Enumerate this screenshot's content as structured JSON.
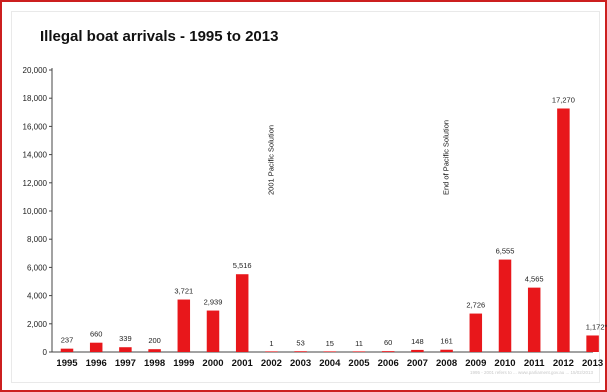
{
  "chart_data": {
    "type": "bar",
    "title": "Illegal boat arrivals - 1995 to 2013",
    "categories": [
      "1995",
      "1996",
      "1997",
      "1998",
      "1999",
      "2000",
      "2001",
      "2002",
      "2003",
      "2004",
      "2005",
      "2006",
      "2007",
      "2008",
      "2009",
      "2010",
      "2011",
      "2012",
      "2013"
    ],
    "values": [
      237,
      660,
      339,
      200,
      3721,
      2939,
      5516,
      1,
      53,
      15,
      11,
      60,
      148,
      161,
      2726,
      6555,
      4565,
      17270,
      1172
    ],
    "value_labels": [
      "237",
      "660",
      "339",
      "200",
      "3,721",
      "2,939",
      "5,516",
      "1",
      "53",
      "15",
      "11",
      "60",
      "148",
      "161",
      "2,726",
      "6,555",
      "4,565",
      "17,270",
      "1,172*"
    ],
    "ylim": [
      0,
      20000
    ],
    "y_ticks": [
      0,
      2000,
      4000,
      6000,
      8000,
      10000,
      12000,
      14000,
      16000,
      18000,
      20000
    ],
    "y_tick_labels": [
      "0",
      "2,000",
      "4,000",
      "6,000",
      "8,000",
      "10,000",
      "12,000",
      "14,000",
      "16,000",
      "18,000",
      "20,000"
    ],
    "xlabel": "",
    "ylabel": "",
    "grid": false,
    "bar_color": "#e8171b",
    "annotations": [
      {
        "text": "2001 Pacific Solution",
        "at_category": "2002"
      },
      {
        "text": "End of Pacific Solution",
        "at_category": "2008"
      }
    ],
    "footer_note": "1995 - 2001 refers to ... www.parliament.gov.au ... 15/02/2013"
  }
}
